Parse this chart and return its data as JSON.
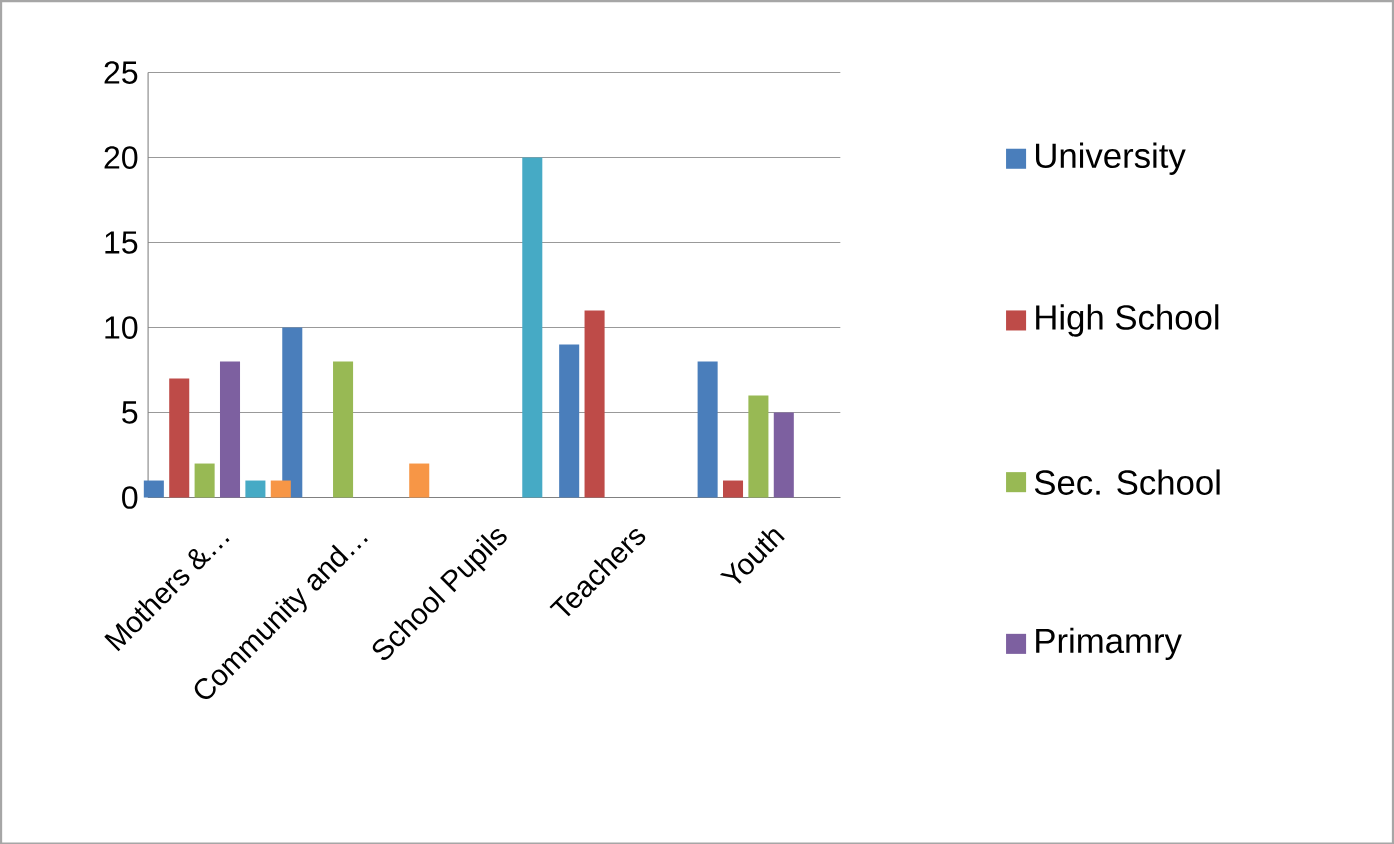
{
  "chart_data": {
    "type": "bar",
    "categories": [
      "Mothers &…",
      "Community and…",
      "School Pupils",
      "Teachers",
      "Youth"
    ],
    "series": [
      {
        "name": "University",
        "color": "#4a7ebb",
        "values": [
          1,
          10,
          0,
          9,
          8
        ]
      },
      {
        "name": "High School",
        "color": "#be4b48",
        "values": [
          7,
          0,
          0,
          11,
          1
        ]
      },
      {
        "name": "Sec. School",
        "color": "#98b954",
        "values": [
          2,
          8,
          0,
          0,
          6
        ]
      },
      {
        "name": "Primamry",
        "color": "#7d60a0",
        "values": [
          8,
          0,
          0,
          0,
          5
        ]
      },
      {
        "color": "#46aac5",
        "values": [
          1,
          0,
          20,
          0,
          0
        ]
      },
      {
        "color": "#f79646",
        "values": [
          1,
          2,
          0,
          0,
          0
        ]
      }
    ],
    "ylim": [
      0,
      25
    ],
    "yticks": [
      0,
      5,
      10,
      15,
      20,
      25
    ],
    "grid": "y",
    "legend": "right"
  }
}
